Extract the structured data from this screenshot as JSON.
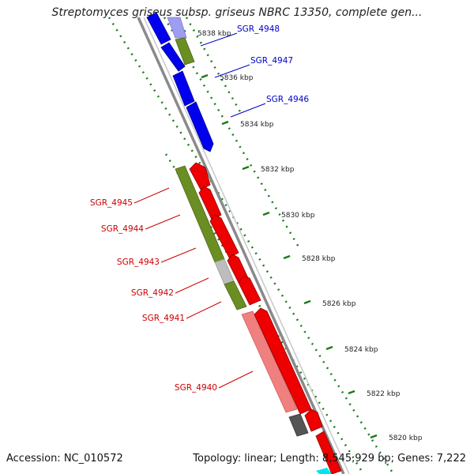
{
  "title": "Streptomyces griseus subsp. griseus NBRC 13350, complete gen...",
  "footer": {
    "accession": "Accession: NC_010572",
    "topology": "Topology: linear; Length: 8,545,929 bp; Genes: 7,222"
  },
  "colors": {
    "forward_cds": "#0000ee",
    "reverse_cds": "#ee0000",
    "forward_label": "#0000cc",
    "reverse_label": "#cc0000",
    "gene_box": "#6b8e23",
    "ruler_tick": "#1a7a1a",
    "backbone": "#8a8a8a"
  },
  "ticks": [
    {
      "label": "5838 kbp"
    },
    {
      "label": "5836 kbp"
    },
    {
      "label": "5834 kbp"
    },
    {
      "label": "5832 kbp"
    },
    {
      "label": "5830 kbp"
    },
    {
      "label": "5828 kbp"
    },
    {
      "label": "5826 kbp"
    },
    {
      "label": "5824 kbp"
    },
    {
      "label": "5822 kbp"
    },
    {
      "label": "5820 kbp"
    }
  ],
  "genes": [
    {
      "name": "SGR_4948",
      "strand": "forward"
    },
    {
      "name": "SGR_4947",
      "strand": "forward"
    },
    {
      "name": "SGR_4946",
      "strand": "forward"
    },
    {
      "name": "SGR_4945",
      "strand": "reverse"
    },
    {
      "name": "SGR_4944",
      "strand": "reverse"
    },
    {
      "name": "SGR_4943",
      "strand": "reverse"
    },
    {
      "name": "SGR_4942",
      "strand": "reverse"
    },
    {
      "name": "SGR_4941",
      "strand": "reverse"
    },
    {
      "name": "SGR_4940",
      "strand": "reverse"
    }
  ]
}
